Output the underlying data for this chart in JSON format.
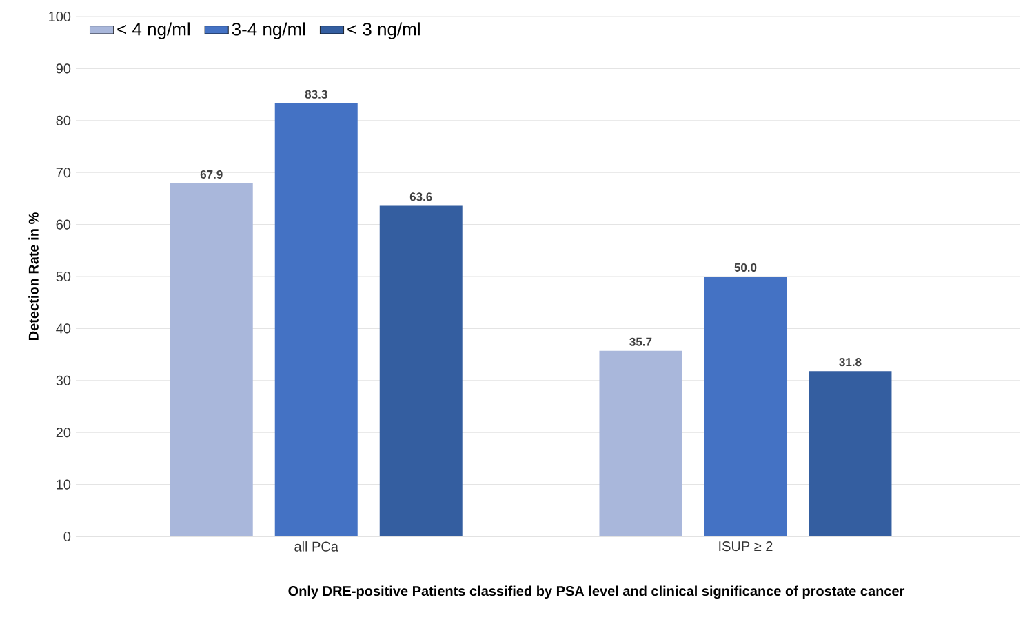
{
  "chart_data": {
    "type": "bar",
    "ylabel": "Detection Rate in %",
    "xlabel": "Only DRE-positive Patients classified by PSA level and clinical significance of prostate cancer",
    "categories": [
      "all PCa",
      "ISUP ≥ 2"
    ],
    "series": [
      {
        "name": "< 4 ng/ml",
        "color": "#a9b7db",
        "values": [
          67.9,
          35.7
        ],
        "value_labels": [
          "67.9",
          "35.7"
        ]
      },
      {
        "name": "3-4 ng/ml",
        "color": "#4472c4",
        "values": [
          83.3,
          50.0
        ],
        "value_labels": [
          "83.3",
          "50.0"
        ]
      },
      {
        "name": "< 3 ng/ml",
        "color": "#345ea0",
        "values": [
          63.6,
          31.8
        ],
        "value_labels": [
          "63.6",
          "31.8"
        ]
      }
    ],
    "ylim": [
      0,
      100
    ],
    "yticks": [
      0,
      10,
      20,
      30,
      40,
      50,
      60,
      70,
      80,
      90,
      100
    ],
    "grid": "y",
    "legend": "top left"
  }
}
